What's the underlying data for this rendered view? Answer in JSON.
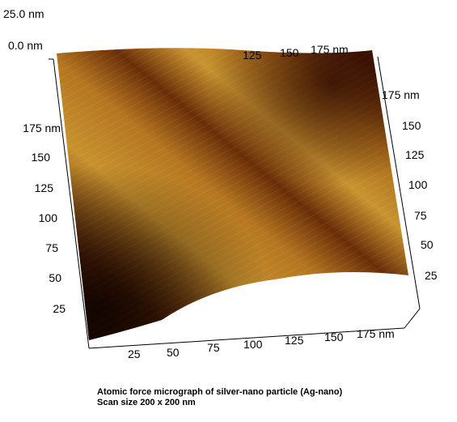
{
  "z_axis": {
    "top_label": "25.0 nm",
    "bottom_label": "0.0 nm"
  },
  "left_axis": {
    "ticks": [
      "175 nm",
      "150",
      "125",
      "100",
      "75",
      "50",
      "25"
    ]
  },
  "right_axis": {
    "ticks": [
      "175 nm",
      "150",
      "125",
      "100",
      "75",
      "50",
      "25"
    ]
  },
  "bottom_axis": {
    "ticks": [
      "25",
      "50",
      "75",
      "100",
      "125",
      "150",
      "175 nm"
    ]
  },
  "back_axis": {
    "ticks": [
      "125",
      "150",
      "175 nm"
    ]
  },
  "caption": {
    "line1": "Atomic force micrograph of silver-nano particle (Ag-nano)",
    "line2": "Scan size 200 x 200 nm"
  },
  "colors": {
    "dark": "#2a0a02",
    "mid": "#8a4a0c",
    "light": "#d8a040"
  }
}
